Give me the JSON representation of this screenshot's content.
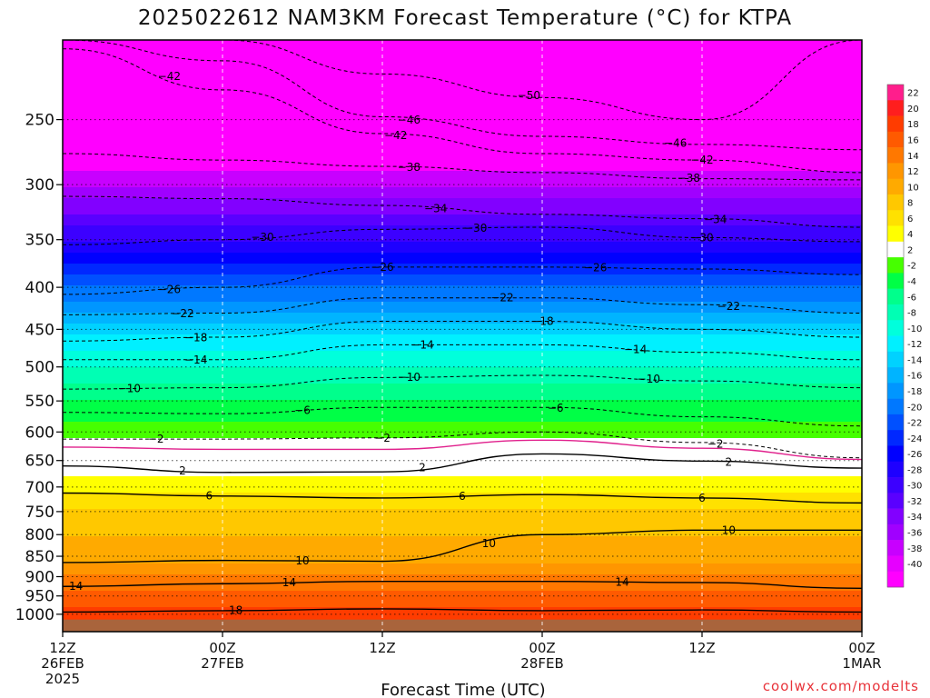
{
  "chart_data": {
    "type": "heatmap",
    "title": "2025022612 NAM3KM Forecast Temperature (°C) for KTPA",
    "xlabel": "Forecast Time (UTC)",
    "ylabel": "",
    "credit": "coolwx.com/modelts",
    "y_axis": {
      "quantity": "pressure (hPa)",
      "scale": "log",
      "range": [
        1050,
        200
      ],
      "ticks": [
        250,
        300,
        350,
        400,
        450,
        500,
        550,
        600,
        650,
        700,
        750,
        800,
        850,
        900,
        950,
        1000
      ],
      "gridlines": "dotted"
    },
    "x_axis": {
      "range_hours": [
        0,
        60
      ],
      "ticks": [
        {
          "line1": "12Z",
          "line2": "26FEB",
          "line3": "2025"
        },
        {
          "line1": "00Z",
          "line2": "27FEB",
          "line3": ""
        },
        {
          "line1": "12Z",
          "line2": "",
          "line3": ""
        },
        {
          "line1": "00Z",
          "line2": "28FEB",
          "line3": ""
        },
        {
          "line1": "12Z",
          "line2": "",
          "line3": ""
        },
        {
          "line1": "00Z",
          "line2": "1MAR",
          "line3": ""
        }
      ],
      "gridlines": "dashed"
    },
    "colorbar": {
      "labels": [
        "22",
        "20",
        "18",
        "16",
        "14",
        "12",
        "10",
        "8",
        "6",
        "4",
        "2",
        "-2",
        "-4",
        "-6",
        "-8",
        "-10",
        "-12",
        "-14",
        "-16",
        "-18",
        "-20",
        "-22",
        "-24",
        "-26",
        "-28",
        "-30",
        "-32",
        "-34",
        "-36",
        "-38",
        "-40"
      ],
      "colors": [
        "#ff1e8c",
        "#ff1e1e",
        "#ff3c00",
        "#ff5a00",
        "#ff7800",
        "#ff9600",
        "#ffaa00",
        "#ffc800",
        "#ffe100",
        "#ffff00",
        "#ffffff",
        "#46ff00",
        "#00ff46",
        "#00ff8c",
        "#00ffb4",
        "#00ffdc",
        "#00f0ff",
        "#00d2ff",
        "#00b4ff",
        "#0096ff",
        "#0078ff",
        "#0050ff",
        "#0028ff",
        "#0000ff",
        "#1e00ff",
        "#3c00ff",
        "#5a00ff",
        "#8200ff",
        "#a000ff",
        "#c800ff",
        "#e600ff",
        "#ff00ff"
      ]
    },
    "temperature_profile": [
      {
        "pressure": 1000,
        "temp": 19
      },
      {
        "pressure": 950,
        "temp": 17
      },
      {
        "pressure": 900,
        "temp": 14
      },
      {
        "pressure": 850,
        "temp": 11
      },
      {
        "pressure": 800,
        "temp": 10
      },
      {
        "pressure": 750,
        "temp": 8
      },
      {
        "pressure": 700,
        "temp": 5
      },
      {
        "pressure": 650,
        "temp": 3
      },
      {
        "pressure": 600,
        "temp": -3
      },
      {
        "pressure": 550,
        "temp": -6
      },
      {
        "pressure": 500,
        "temp": -10
      },
      {
        "pressure": 450,
        "temp": -15
      },
      {
        "pressure": 400,
        "temp": -22
      },
      {
        "pressure": 350,
        "temp": -30
      },
      {
        "pressure": 300,
        "temp": -38
      },
      {
        "pressure": 250,
        "temp": -46
      }
    ],
    "contours": [
      {
        "temp": 18,
        "dashed": false,
        "color": "#000000",
        "pressure": [
          994,
          990,
          985,
          990,
          988,
          994
        ],
        "labels": [
          {
            "text": "18",
            "hour": 13
          }
        ]
      },
      {
        "temp": 14,
        "dashed": false,
        "color": "#000000",
        "pressure": [
          925,
          918,
          912,
          912,
          915,
          930
        ],
        "labels": [
          {
            "text": "14",
            "hour": 1
          },
          {
            "text": "14",
            "hour": 17
          },
          {
            "text": "14",
            "hour": 42
          }
        ]
      },
      {
        "temp": 10,
        "dashed": false,
        "color": "#000000",
        "pressure": [
          865,
          860,
          862,
          800,
          790,
          790
        ],
        "labels": [
          {
            "text": "10",
            "hour": 18
          },
          {
            "text": "10",
            "hour": 32
          },
          {
            "text": "10",
            "hour": 50
          }
        ]
      },
      {
        "temp": 6,
        "dashed": false,
        "color": "#000000",
        "pressure": [
          712,
          718,
          722,
          715,
          722,
          732
        ],
        "labels": [
          {
            "text": "6",
            "hour": 11
          },
          {
            "text": "6",
            "hour": 30
          },
          {
            "text": "6",
            "hour": 48
          }
        ]
      },
      {
        "temp": 2,
        "dashed": false,
        "color": "#000000",
        "pressure": [
          660,
          672,
          671,
          638,
          651,
          664
        ],
        "labels": [
          {
            "text": "2",
            "hour": 9
          },
          {
            "text": "2",
            "hour": 27
          },
          {
            "text": "2",
            "hour": 50
          }
        ]
      },
      {
        "temp": 0,
        "dashed": false,
        "color": "#e0208c",
        "pressure": [
          626,
          630,
          630,
          614,
          628,
          648
        ],
        "labels": []
      },
      {
        "temp": -2,
        "dashed": true,
        "color": "#000000",
        "pressure": [
          612,
          612,
          610,
          600,
          618,
          645
        ],
        "labels": [
          {
            "text": "2",
            "hour": 7
          },
          {
            "text": "2",
            "hour": 24
          },
          {
            "text": "2",
            "hour": 49
          }
        ]
      },
      {
        "temp": -6,
        "dashed": true,
        "color": "#000000",
        "pressure": [
          568,
          570,
          560,
          560,
          575,
          590
        ],
        "labels": [
          {
            "text": "6",
            "hour": 18
          },
          {
            "text": "6",
            "hour": 37
          }
        ]
      },
      {
        "temp": -10,
        "dashed": true,
        "color": "#000000",
        "pressure": [
          532,
          530,
          515,
          512,
          520,
          530
        ],
        "labels": [
          {
            "text": "10",
            "hour": 5
          },
          {
            "text": "10",
            "hour": 26
          },
          {
            "text": "10",
            "hour": 44
          }
        ]
      },
      {
        "temp": -14,
        "dashed": true,
        "color": "#000000",
        "pressure": [
          490,
          490,
          470,
          470,
          480,
          490
        ],
        "labels": [
          {
            "text": "14",
            "hour": 10
          },
          {
            "text": "14",
            "hour": 27
          },
          {
            "text": "14",
            "hour": 43
          }
        ]
      },
      {
        "temp": -18,
        "dashed": true,
        "color": "#000000",
        "pressure": [
          465,
          460,
          440,
          440,
          450,
          460
        ],
        "labels": [
          {
            "text": "18",
            "hour": 10
          },
          {
            "text": "18",
            "hour": 36
          }
        ]
      },
      {
        "temp": -22,
        "dashed": true,
        "color": "#000000",
        "pressure": [
          432,
          430,
          412,
          412,
          420,
          430
        ],
        "labels": [
          {
            "text": "22",
            "hour": 9
          },
          {
            "text": "22",
            "hour": 33
          },
          {
            "text": "22",
            "hour": 50
          }
        ]
      },
      {
        "temp": -26,
        "dashed": true,
        "color": "#000000",
        "pressure": [
          408,
          400,
          378,
          378,
          380,
          386
        ],
        "labels": [
          {
            "text": "26",
            "hour": 8
          },
          {
            "text": "26",
            "hour": 24
          },
          {
            "text": "26",
            "hour": 40
          }
        ]
      },
      {
        "temp": -30,
        "dashed": true,
        "color": "#000000",
        "pressure": [
          355,
          350,
          340,
          338,
          348,
          352
        ],
        "labels": [
          {
            "text": "30",
            "hour": 15
          },
          {
            "text": "30",
            "hour": 31
          },
          {
            "text": "30",
            "hour": 48
          }
        ]
      },
      {
        "temp": -34,
        "dashed": true,
        "color": "#000000",
        "pressure": [
          310,
          312,
          318,
          326,
          330,
          338
        ],
        "labels": [
          {
            "text": "34",
            "hour": 28
          },
          {
            "text": "34",
            "hour": 49
          }
        ]
      },
      {
        "temp": -38,
        "dashed": true,
        "color": "#000000",
        "pressure": [
          275,
          280,
          285,
          290,
          295,
          296
        ],
        "labels": [
          {
            "text": "38",
            "hour": 26
          },
          {
            "text": "38",
            "hour": 47
          }
        ]
      },
      {
        "temp": -42,
        "dashed": true,
        "color": "#000000",
        "pressure": [
          205,
          230,
          260,
          275,
          280,
          290
        ],
        "labels": [
          {
            "text": "42",
            "hour": 8
          },
          {
            "text": "42",
            "hour": 25
          },
          {
            "text": "42",
            "hour": 48
          }
        ]
      },
      {
        "temp": -46,
        "dashed": true,
        "color": "#000000",
        "pressure": [
          200,
          212,
          248,
          262,
          268,
          272
        ],
        "labels": [
          {
            "text": "46",
            "hour": 26
          },
          {
            "text": "46",
            "hour": 46
          }
        ]
      },
      {
        "temp": -50,
        "dashed": true,
        "color": "#000000",
        "pressure": [
          200,
          200,
          220,
          235,
          250,
          200
        ],
        "labels": [
          {
            "text": "50",
            "hour": 35
          }
        ]
      }
    ]
  }
}
